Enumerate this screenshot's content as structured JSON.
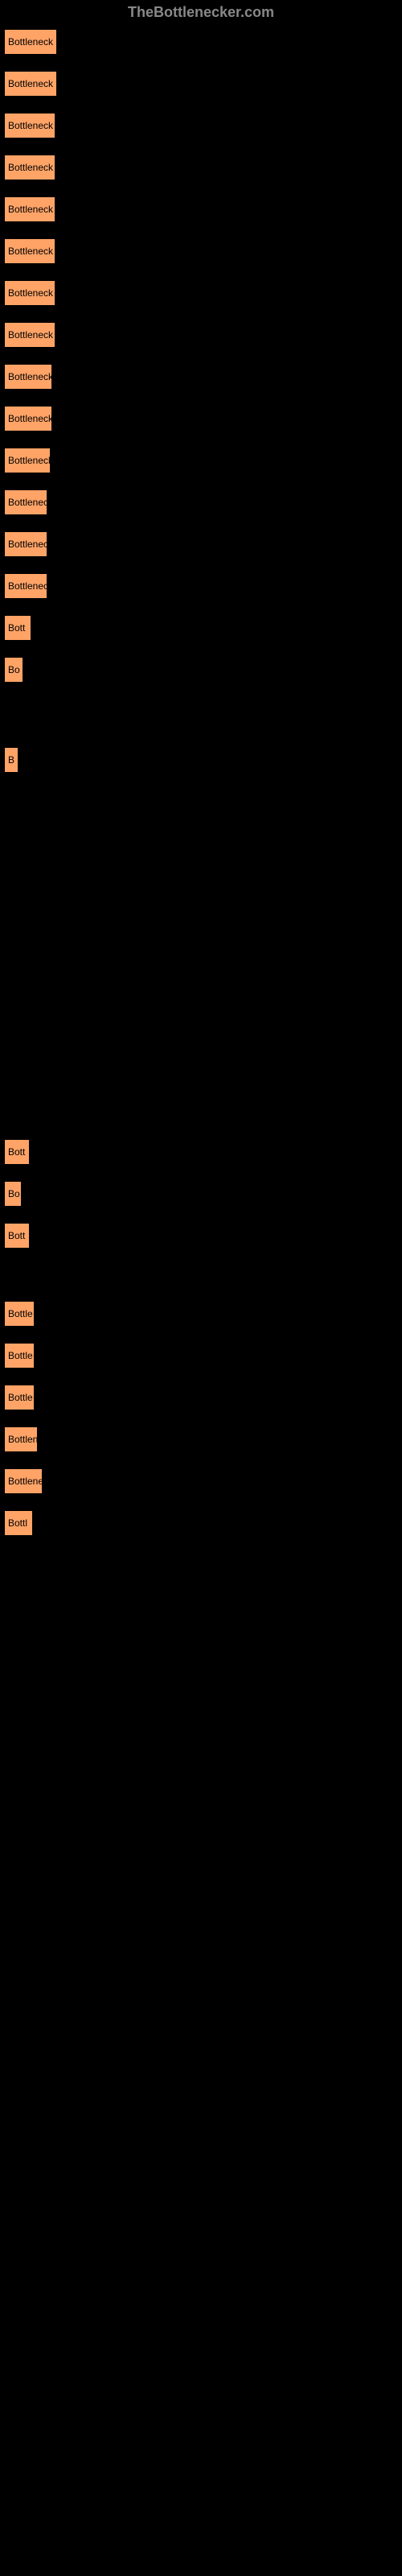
{
  "header": "TheBottlenecker.com",
  "buttons": [
    {
      "label": "Bottleneck re",
      "width": 56
    },
    {
      "label": "Bottleneck re",
      "width": 56
    },
    {
      "label": "Bottleneck r",
      "width": 54
    },
    {
      "label": "Bottleneck r",
      "width": 54
    },
    {
      "label": "Bottleneck r",
      "width": 54
    },
    {
      "label": "Bottleneck r",
      "width": 54
    },
    {
      "label": "Bottleneck r",
      "width": 54
    },
    {
      "label": "Bottleneck r",
      "width": 54
    },
    {
      "label": "Bottleneck",
      "width": 50
    },
    {
      "label": "Bottleneck",
      "width": 50
    },
    {
      "label": "Bottleneck",
      "width": 48
    },
    {
      "label": "Bottlenec",
      "width": 44
    },
    {
      "label": "Bottlenec",
      "width": 44
    },
    {
      "label": "Bottlenec",
      "width": 44
    },
    {
      "label": "Bott",
      "width": 24
    },
    {
      "label": "Bo",
      "width": 14
    },
    {
      "label": "B",
      "width": 8
    },
    {
      "label": "Bott",
      "width": 22
    },
    {
      "label": "Bo",
      "width": 12
    },
    {
      "label": "Bott",
      "width": 22
    },
    {
      "label": "Bottle",
      "width": 28
    },
    {
      "label": "Bottle",
      "width": 28
    },
    {
      "label": "Bottle",
      "width": 28
    },
    {
      "label": "Bottlen",
      "width": 32
    },
    {
      "label": "Bottlene",
      "width": 38
    },
    {
      "label": "Bottl",
      "width": 26
    }
  ],
  "spacings": [
    15,
    15,
    15,
    15,
    15,
    15,
    15,
    15,
    15,
    15,
    15,
    15,
    15,
    15,
    15,
    75,
    450,
    15,
    15,
    60,
    15,
    15,
    15,
    15,
    15,
    15
  ]
}
